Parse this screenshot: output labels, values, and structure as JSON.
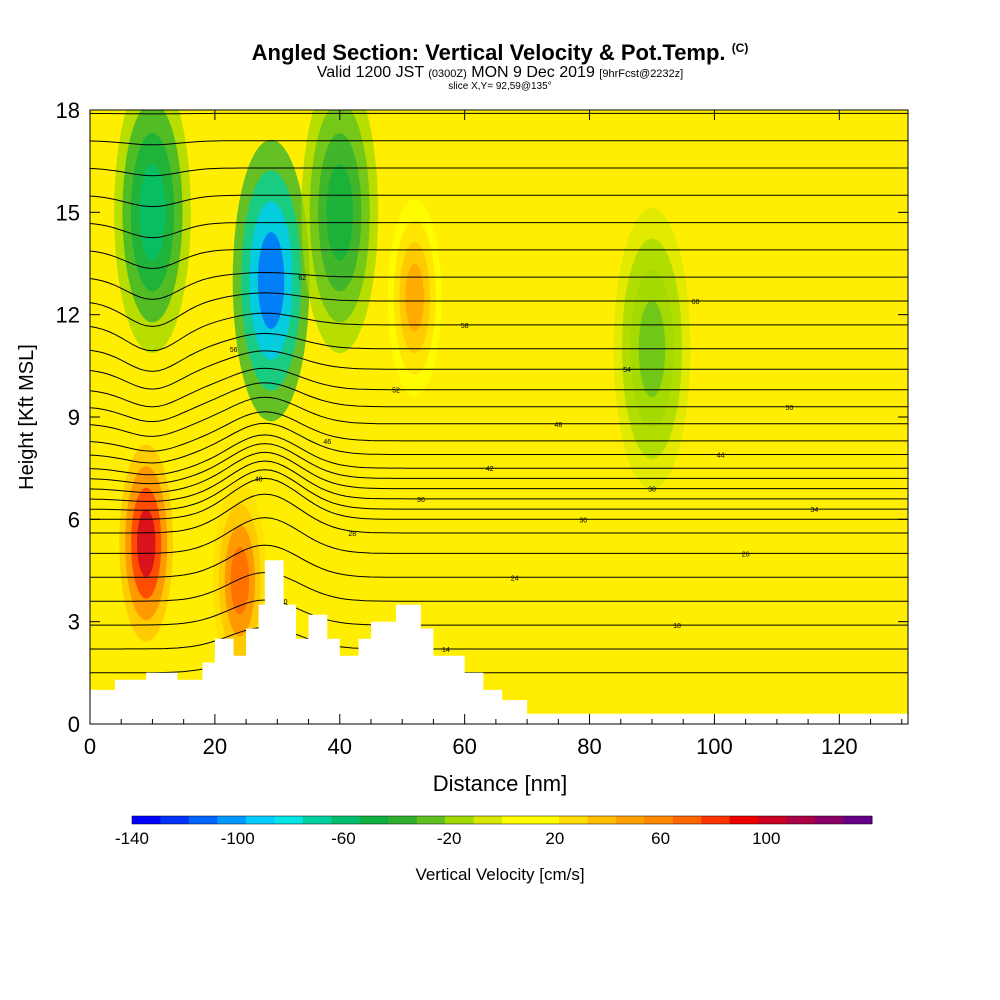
{
  "title": {
    "main": "Angled Section: Vertical Velocity & Pot.Temp.",
    "copyright": "(C)",
    "valid_prefix": "Valid 1200 JST",
    "valid_utc": "(0300Z)",
    "valid_date": "MON 9 Dec 2019",
    "forecast": "[9hrFcst@2232z]",
    "slice": "slice X,Y= 92,59@135°"
  },
  "chart_data": {
    "type": "heatmap",
    "xlabel": "Distance [nm]",
    "ylabel": "Height [Kft MSL]",
    "xlim": [
      0,
      131
    ],
    "ylim": [
      0,
      18
    ],
    "x_ticks": [
      0,
      20,
      40,
      60,
      80,
      100,
      120
    ],
    "y_ticks": [
      0,
      3,
      6,
      9,
      12,
      15,
      18
    ],
    "colorbar": {
      "label": "Vertical Velocity [cm/s]",
      "range": [
        -140,
        140
      ],
      "tick_labels": [
        -140,
        -100,
        -60,
        -20,
        20,
        60,
        100
      ],
      "colors": [
        "#0000ff",
        "#0033ff",
        "#0066ff",
        "#0099ff",
        "#00ccff",
        "#00e5e5",
        "#00d0a0",
        "#00c070",
        "#10b040",
        "#30b030",
        "#60c020",
        "#a0d800",
        "#d8e800",
        "#ffff00",
        "#ffff00",
        "#ffdd00",
        "#ffc000",
        "#ffa000",
        "#ff8800",
        "#ff6600",
        "#ff3300",
        "#ee0000",
        "#cc0022",
        "#aa0044",
        "#880066",
        "#660088"
      ]
    },
    "terrain_profile": [
      [
        0,
        1
      ],
      [
        4,
        1
      ],
      [
        4,
        1.3
      ],
      [
        9,
        1.3
      ],
      [
        9,
        1.5
      ],
      [
        14,
        1.5
      ],
      [
        14,
        1.3
      ],
      [
        18,
        1.3
      ],
      [
        18,
        1.8
      ],
      [
        20,
        1.8
      ],
      [
        20,
        2.5
      ],
      [
        23,
        2.5
      ],
      [
        23,
        2
      ],
      [
        25,
        2
      ],
      [
        25,
        2.8
      ],
      [
        27,
        2.8
      ],
      [
        27,
        3.5
      ],
      [
        28,
        3.5
      ],
      [
        28,
        4.8
      ],
      [
        31,
        4.8
      ],
      [
        31,
        3.5
      ],
      [
        33,
        3.5
      ],
      [
        33,
        2.5
      ],
      [
        35,
        2.5
      ],
      [
        35,
        3.2
      ],
      [
        38,
        3.2
      ],
      [
        38,
        2.5
      ],
      [
        40,
        2.5
      ],
      [
        40,
        2
      ],
      [
        43,
        2
      ],
      [
        43,
        2.5
      ],
      [
        45,
        2.5
      ],
      [
        45,
        3
      ],
      [
        49,
        3
      ],
      [
        49,
        3.5
      ],
      [
        53,
        3.5
      ],
      [
        53,
        2.8
      ],
      [
        55,
        2.8
      ],
      [
        55,
        2
      ],
      [
        60,
        2
      ],
      [
        60,
        1.5
      ],
      [
        63,
        1.5
      ],
      [
        63,
        1
      ],
      [
        66,
        1
      ],
      [
        66,
        0.7
      ],
      [
        70,
        0.7
      ],
      [
        70,
        0.3
      ],
      [
        131,
        0.3
      ]
    ],
    "theta_contour_heights": [
      1.5,
      2.2,
      2.9,
      3.6,
      4.3,
      5.0,
      5.6,
      6.0,
      6.3,
      6.6,
      6.9,
      7.2,
      7.5,
      7.9,
      8.3,
      8.8,
      9.3,
      9.8,
      10.4,
      11.0,
      11.7,
      12.4,
      13.1,
      13.9,
      14.7,
      15.5,
      16.3,
      17.1,
      17.9
    ],
    "theta_contour_labels": [
      "8",
      "14",
      "18",
      "20",
      "24",
      "26",
      "28",
      "30",
      "34",
      "36",
      "38",
      "40",
      "42",
      "44",
      "46",
      "48",
      "50",
      "52",
      "54",
      "56",
      "58",
      "60",
      "62"
    ],
    "velocity_features": [
      {
        "kind": "updraft",
        "x": 9,
        "z": 5.3,
        "peak": 100
      },
      {
        "kind": "updraft",
        "x": 24,
        "z": 4.2,
        "peak": 70
      },
      {
        "kind": "updraft",
        "x": 52,
        "z": 12.5,
        "peak": 50
      },
      {
        "kind": "downdraft",
        "x": 29,
        "z": 13,
        "peak": -110
      },
      {
        "kind": "downdraft",
        "x": 10,
        "z": 15,
        "peak": -55
      },
      {
        "kind": "downdraft",
        "x": 40,
        "z": 15,
        "peak": -50
      },
      {
        "kind": "downdraft",
        "x": 90,
        "z": 11,
        "peak": -25
      }
    ]
  }
}
